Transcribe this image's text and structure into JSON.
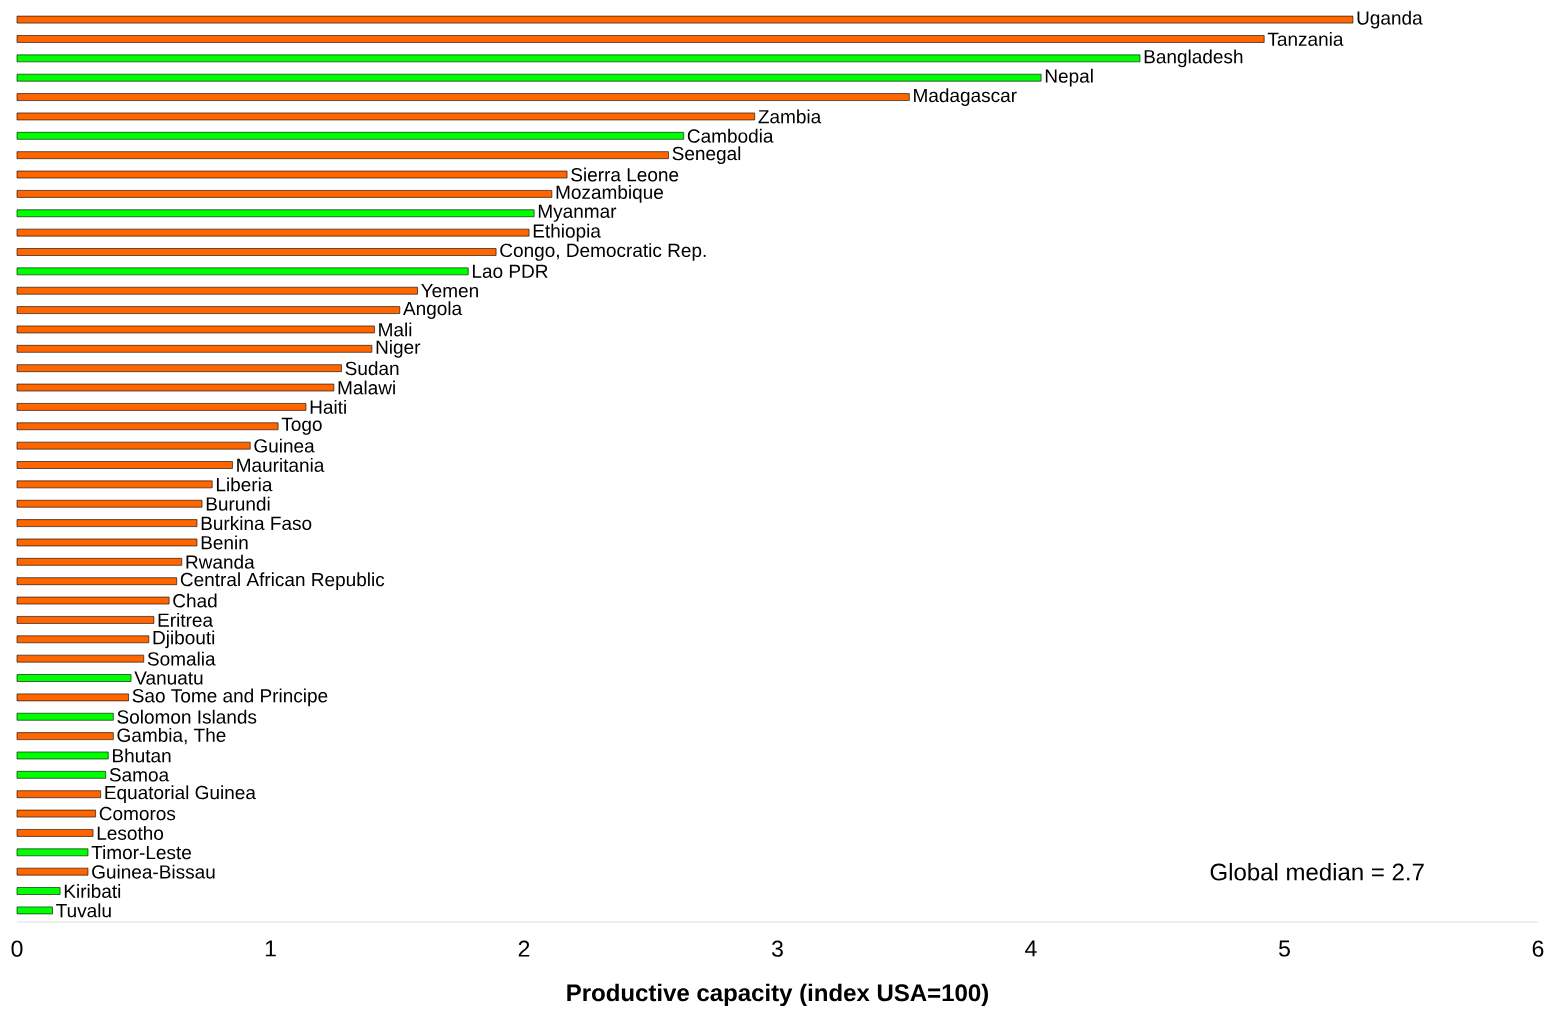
{
  "chart_data": {
    "type": "bar",
    "orientation": "horizontal",
    "xlabel": "Productive capacity (index USA=100)",
    "categories": [
      "Uganda",
      "Tanzania",
      "Bangladesh",
      "Nepal",
      "Madagascar",
      "Zambia",
      "Cambodia",
      "Senegal",
      "Sierra Leone",
      "Mozambique",
      "Myanmar",
      "Ethiopia",
      "Congo, Democratic Rep.",
      "Lao PDR",
      "Yemen",
      "Angola",
      "Mali",
      "Niger",
      "Sudan",
      "Malawi",
      "Haiti",
      "Togo",
      "Guinea",
      "Mauritania",
      "Liberia",
      "Burundi",
      "Burkina Faso",
      "Benin",
      "Rwanda",
      "Central African Republic",
      "Chad",
      "Eritrea",
      "Djibouti",
      "Somalia",
      "Vanuatu",
      "Sao Tome and Principe",
      "Solomon Islands",
      "Gambia, The",
      "Bhutan",
      "Samoa",
      "Equatorial Guinea",
      "Comoros",
      "Lesotho",
      "Timor-Leste",
      "Guinea-Bissau",
      "Kiribati",
      "Tuvalu"
    ],
    "values": [
      5.27,
      4.92,
      4.43,
      4.04,
      3.52,
      2.91,
      2.63,
      2.57,
      2.17,
      2.11,
      2.04,
      2.02,
      1.89,
      1.78,
      1.58,
      1.51,
      1.41,
      1.4,
      1.28,
      1.25,
      1.14,
      1.03,
      0.92,
      0.85,
      0.77,
      0.73,
      0.71,
      0.71,
      0.65,
      0.63,
      0.6,
      0.54,
      0.52,
      0.5,
      0.45,
      0.44,
      0.38,
      0.38,
      0.36,
      0.35,
      0.33,
      0.31,
      0.3,
      0.28,
      0.28,
      0.17,
      0.14
    ],
    "colors": [
      "#ff6600",
      "#ff6600",
      "#00ff00",
      "#00ff00",
      "#ff6600",
      "#ff6600",
      "#00ff00",
      "#ff6600",
      "#ff6600",
      "#ff6600",
      "#00ff00",
      "#ff6600",
      "#ff6600",
      "#00ff00",
      "#ff6600",
      "#ff6600",
      "#ff6600",
      "#ff6600",
      "#ff6600",
      "#ff6600",
      "#ff6600",
      "#ff6600",
      "#ff6600",
      "#ff6600",
      "#ff6600",
      "#ff6600",
      "#ff6600",
      "#ff6600",
      "#ff6600",
      "#ff6600",
      "#ff6600",
      "#ff6600",
      "#ff6600",
      "#ff6600",
      "#00ff00",
      "#ff6600",
      "#00ff00",
      "#ff6600",
      "#00ff00",
      "#00ff00",
      "#ff6600",
      "#ff6600",
      "#ff6600",
      "#00ff00",
      "#ff6600",
      "#00ff00",
      "#00ff00"
    ],
    "xlim": [
      0,
      6
    ],
    "xticks": [
      0,
      1,
      2,
      3,
      4,
      5,
      6
    ],
    "tick_labels": "x",
    "grid": false,
    "annotations": [
      "Global median = 2.7"
    ]
  }
}
